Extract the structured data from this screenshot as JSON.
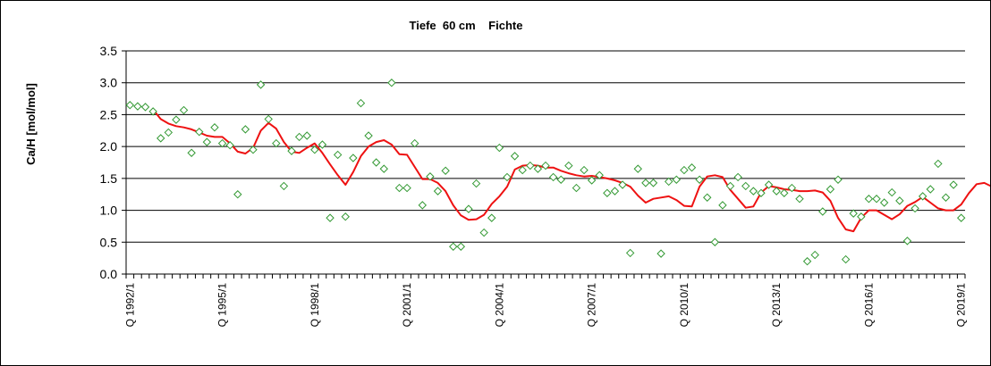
{
  "chart_data": {
    "type": "line",
    "title": "Tiefe  60 cm    Fichte",
    "xlabel": "",
    "ylabel": "Ca/H [mol/mol]",
    "ylim": [
      0,
      3.5
    ],
    "yticks": [
      "0.0",
      "0.5",
      "1.0",
      "1.5",
      "2.0",
      "2.5",
      "3.0",
      "3.5"
    ],
    "grid": true,
    "x_start_quarter": "1992/1",
    "x_tick_labels": [
      "Q 1992/1",
      "Q 1995/1",
      "Q 1998/1",
      "Q 2001/1",
      "Q 2004/1",
      "Q 2007/1",
      "Q 2010/1",
      "Q 2013/1",
      "Q 2016/1",
      "Q 2019/1"
    ],
    "series": [
      {
        "kind": "scatter",
        "marker": "diamond",
        "color": "#339933",
        "values": [
          2.65,
          2.63,
          2.62,
          2.55,
          2.13,
          2.22,
          2.42,
          2.57,
          1.9,
          2.23,
          2.07,
          2.3,
          2.05,
          2.02,
          1.25,
          2.27,
          1.95,
          2.97,
          2.43,
          2.05,
          1.38,
          1.93,
          2.15,
          2.17,
          1.95,
          2.03,
          0.88,
          1.87,
          0.9,
          1.82,
          2.68,
          2.17,
          1.75,
          1.65,
          3.0,
          1.35,
          1.35,
          2.05,
          1.08,
          1.53,
          1.3,
          1.62,
          0.43,
          0.43,
          1.02,
          1.42,
          0.65,
          0.88,
          1.98,
          1.52,
          1.85,
          1.63,
          1.7,
          1.65,
          1.7,
          1.52,
          1.48,
          1.7,
          1.35,
          1.63,
          1.47,
          1.55,
          1.27,
          1.3,
          1.4,
          0.33,
          1.65,
          1.43,
          1.43,
          0.32,
          1.45,
          1.48,
          1.63,
          1.67,
          1.48,
          1.2,
          0.5,
          1.08,
          1.38,
          1.52,
          1.38,
          1.3,
          1.27,
          1.4,
          1.3,
          1.27,
          1.35,
          1.18,
          0.2,
          0.3,
          0.98,
          1.33,
          1.48,
          0.23,
          0.95,
          0.9,
          1.18,
          1.18,
          1.12,
          1.28,
          1.15,
          0.52,
          1.03,
          1.22,
          1.33,
          1.73,
          1.2,
          1.4,
          0.88
        ]
      },
      {
        "kind": "line",
        "color": "#ee1111",
        "start_index": 3,
        "values": [
          2.58,
          2.43,
          2.36,
          2.32,
          2.3,
          2.27,
          2.22,
          2.17,
          2.15,
          2.15,
          2.05,
          1.92,
          1.89,
          1.98,
          2.25,
          2.37,
          2.28,
          2.07,
          1.92,
          1.9,
          1.98,
          2.05,
          1.9,
          1.72,
          1.55,
          1.4,
          1.6,
          1.85,
          2.0,
          2.07,
          2.1,
          2.03,
          1.88,
          1.87,
          1.68,
          1.49,
          1.49,
          1.43,
          1.3,
          1.08,
          0.92,
          0.85,
          0.86,
          0.93,
          1.1,
          1.22,
          1.37,
          1.64,
          1.7,
          1.71,
          1.7,
          1.67,
          1.67,
          1.62,
          1.58,
          1.55,
          1.53,
          1.54,
          1.52,
          1.5,
          1.47,
          1.43,
          1.37,
          1.23,
          1.12,
          1.18,
          1.2,
          1.22,
          1.16,
          1.07,
          1.06,
          1.37,
          1.53,
          1.55,
          1.52,
          1.32,
          1.18,
          1.04,
          1.06,
          1.28,
          1.38,
          1.36,
          1.33,
          1.32,
          1.3,
          1.3,
          1.31,
          1.28,
          1.15,
          0.88,
          0.7,
          0.67,
          0.88,
          1.0,
          1.0,
          0.93,
          0.86,
          0.94,
          1.07,
          1.13,
          1.21,
          1.12,
          1.03,
          1.0,
          1.0,
          1.09,
          1.27,
          1.41,
          1.43,
          1.37
        ]
      }
    ]
  }
}
